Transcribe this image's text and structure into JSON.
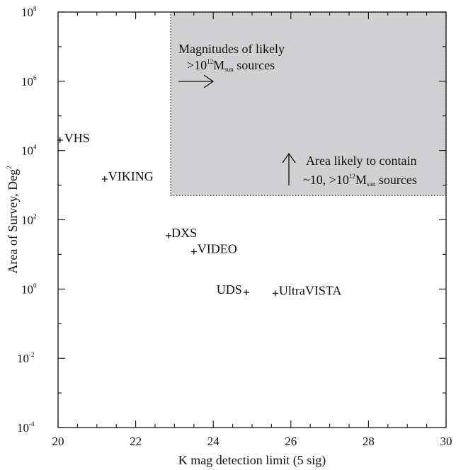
{
  "chart_data": {
    "type": "scatter",
    "xlabel": "K mag detection limit (5 sig)",
    "ylabel_main": "Area of Survey, Deg",
    "ylabel_sup": "2",
    "xlim": [
      20,
      30
    ],
    "ylim_log10": [
      -4,
      8
    ],
    "y_scale": "log",
    "x_ticks": [
      "20",
      "22",
      "24",
      "26",
      "28",
      "30"
    ],
    "y_ticks": [
      {
        "base": "10",
        "exp": "8"
      },
      {
        "base": "10",
        "exp": "6"
      },
      {
        "base": "10",
        "exp": "4"
      },
      {
        "base": "10",
        "exp": "2"
      },
      {
        "base": "10",
        "exp": "0"
      },
      {
        "base": "10",
        "exp": "-2"
      },
      {
        "base": "10",
        "exp": "-4"
      }
    ],
    "points": [
      {
        "label": "VHS",
        "x": 20.05,
        "y": 20000
      },
      {
        "label": "VIKING",
        "x": 21.2,
        "y": 1500
      },
      {
        "label": "DXS",
        "x": 22.85,
        "y": 35
      },
      {
        "label": "VIDEO",
        "x": 23.5,
        "y": 12
      },
      {
        "label": "UDS",
        "x": 24.85,
        "y": 0.8
      },
      {
        "label": "UltraVISTA",
        "x": 25.6,
        "y": 0.75
      }
    ],
    "shaded_region": {
      "x_min": 22.9,
      "y_min": 500,
      "color": "#d0d0d2"
    },
    "annotations": {
      "magnitudes": {
        "line1": "Magnitudes of likely",
        "line2_prefix": ">10",
        "line2_sup": "12",
        "line2_M": "M",
        "line2_sub": "sun",
        "line2_suffix": " sources"
      },
      "area": {
        "line1": "Area likely to contain",
        "line2_prefix": "~10, >10",
        "line2_sup": "12",
        "line2_M": "M",
        "line2_sub": "sun",
        "line2_suffix": " sources"
      }
    },
    "grid": false,
    "colors": {
      "shade": "#d0d0d2",
      "ink": "#111111"
    }
  }
}
